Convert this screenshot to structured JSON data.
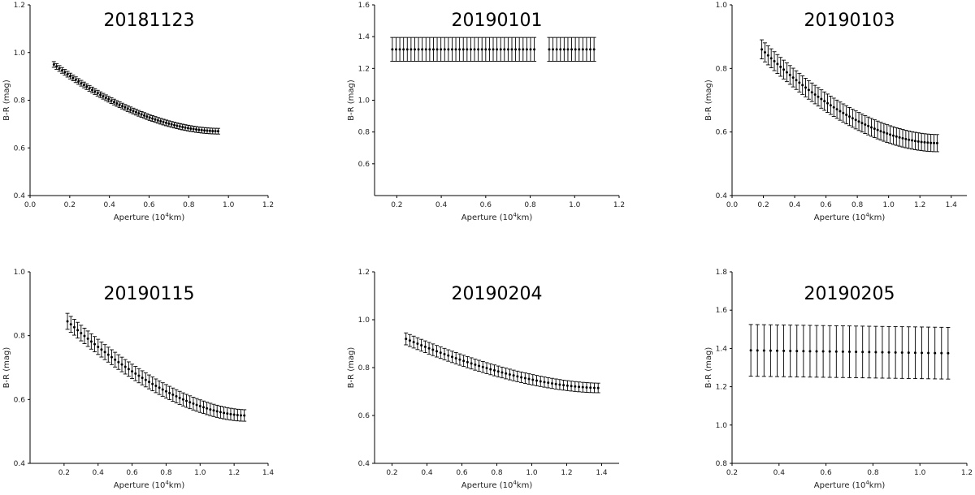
{
  "chart_data": [
    {
      "type": "scatter",
      "title": "20181123",
      "xlabel_parts": [
        "Aperture (10",
        "4",
        "km)"
      ],
      "ylabel": "B-R (mag)",
      "xlim": [
        0.0,
        1.2
      ],
      "ylim": [
        0.4,
        1.2
      ],
      "xticks": [
        "0.0",
        "0.2",
        "0.4",
        "0.6",
        "0.8",
        "1.0",
        "1.2"
      ],
      "yticks": [
        "0.4",
        "0.6",
        "0.8",
        "1.0",
        "1.2"
      ],
      "grid": false,
      "points": {
        "x_start": 0.12,
        "x_end": 0.95,
        "x_step": 0.0138,
        "y_start": 0.95,
        "y_end": 0.67,
        "curve": 0.55,
        "err": 0.012,
        "err_start": 0.012,
        "err_end": 0.012
      }
    },
    {
      "type": "scatter",
      "title": "20190101",
      "xlabel_parts": [
        "Aperture (10",
        "4",
        "km)"
      ],
      "ylabel": "B-R (mag)",
      "xlim": [
        0.1,
        1.2
      ],
      "ylim": [
        0.4,
        1.6
      ],
      "xticks": [
        "0.2",
        "0.4",
        "0.6",
        "0.8",
        "1.0",
        "1.2"
      ],
      "yticks": [
        "0.6",
        "0.8",
        "1.0",
        "1.2",
        "1.4",
        "1.6"
      ],
      "grid": false,
      "points": {
        "x_start": 0.18,
        "x_end": 1.09,
        "x_step": 0.0168,
        "y_start": 1.32,
        "y_end": 1.32,
        "curve": 1.0,
        "err": 0.075,
        "err_start": 0.075,
        "err_end": 0.075,
        "gap": [
          0.83,
          0.87
        ]
      }
    },
    {
      "type": "scatter",
      "title": "20190103",
      "xlabel_parts": [
        "Aperture (10",
        "4",
        "km)"
      ],
      "ylabel": "B-R (mag)",
      "xlim": [
        0.0,
        1.5
      ],
      "ylim": [
        0.4,
        1.0
      ],
      "xticks": [
        "0.0",
        "0.2",
        "0.4",
        "0.6",
        "0.8",
        "1.0",
        "1.2",
        "1.4"
      ],
      "yticks": [
        "0.4",
        "0.6",
        "0.8",
        "1.0"
      ],
      "grid": false,
      "points": {
        "x_start": 0.19,
        "x_end": 1.31,
        "x_step": 0.02,
        "y_start": 0.86,
        "y_end": 0.565,
        "curve": 0.55,
        "err_start": 0.03,
        "err_end": 0.027
      }
    },
    {
      "type": "scatter",
      "title": "20190115",
      "xlabel_parts": [
        "Aperture (10",
        "4",
        "km)"
      ],
      "ylabel": "B-R (mag)",
      "xlim": [
        0.0,
        1.4
      ],
      "ylim": [
        0.4,
        1.0
      ],
      "xticks": [
        "0.2",
        "0.4",
        "0.6",
        "0.8",
        "1.0",
        "1.2",
        "1.4"
      ],
      "yticks": [
        "0.4",
        "0.6",
        "0.8",
        "1.0"
      ],
      "grid": false,
      "points": {
        "x_start": 0.22,
        "x_end": 1.26,
        "x_step": 0.02,
        "y_start": 0.845,
        "y_end": 0.55,
        "curve": 0.6,
        "err_start": 0.025,
        "err_end": 0.018
      }
    },
    {
      "type": "scatter",
      "title": "20190204",
      "xlabel_parts": [
        "Aperture (10",
        "4",
        "km)"
      ],
      "ylabel": "B-R (mag)",
      "xlim": [
        0.1,
        1.5
      ],
      "ylim": [
        0.4,
        1.2
      ],
      "xticks": [
        "0.2",
        "0.4",
        "0.6",
        "0.8",
        "1.0",
        "1.2",
        "1.4"
      ],
      "yticks": [
        "0.4",
        "0.6",
        "0.8",
        "1.0",
        "1.2"
      ],
      "grid": false,
      "points": {
        "x_start": 0.28,
        "x_end": 1.38,
        "x_step": 0.022,
        "y_start": 0.92,
        "y_end": 0.715,
        "curve": 0.6,
        "err_start": 0.025,
        "err_end": 0.02
      }
    },
    {
      "type": "scatter",
      "title": "20190205",
      "xlabel_parts": [
        "Aperture (10",
        "4",
        "km)"
      ],
      "ylabel": "B-R (mag)",
      "xlim": [
        0.2,
        1.2
      ],
      "ylim": [
        0.8,
        1.8
      ],
      "xticks": [
        "0.2",
        "0.4",
        "0.6",
        "0.8",
        "1.0",
        "1.2"
      ],
      "yticks": [
        "0.8",
        "1.0",
        "1.2",
        "1.4",
        "1.6",
        "1.8"
      ],
      "grid": false,
      "points": {
        "x_start": 0.28,
        "x_end": 1.12,
        "x_step": 0.028,
        "y_start": 1.39,
        "y_end": 1.375,
        "curve": 1.0,
        "err_start": 0.135,
        "err_end": 0.135
      }
    }
  ]
}
